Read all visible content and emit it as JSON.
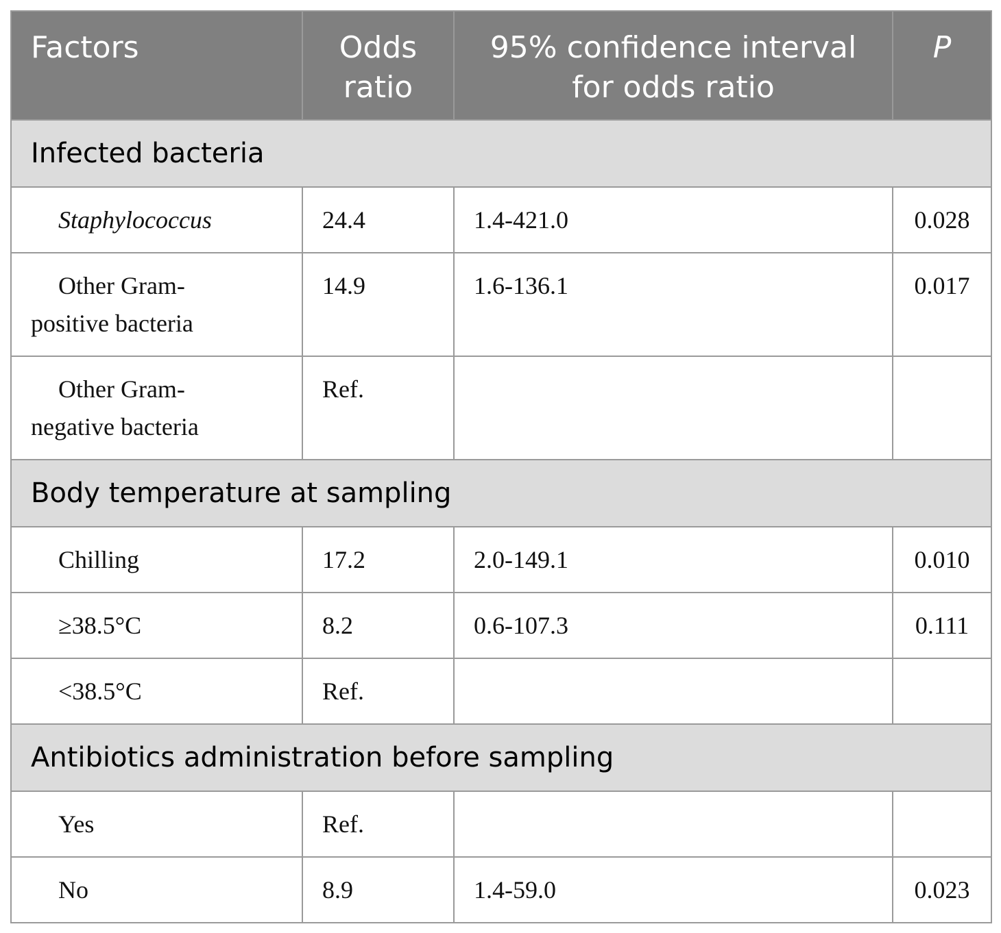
{
  "table": {
    "header": {
      "factors": "Factors",
      "odds_ratio": "Odds ratio",
      "ci": "95% confidence interval for odds ratio",
      "p": "P"
    },
    "sections": [
      {
        "title": "Infected bacteria",
        "rows": [
          {
            "factor": "Staphylococcus",
            "odds_ratio": "24.4",
            "ci": "1.4-421.0",
            "p": "0.028"
          },
          {
            "factor": "Other Gram-positive bacteria",
            "odds_ratio": "14.9",
            "ci": "1.6-136.1",
            "p": "0.017"
          },
          {
            "factor": "Other Gram-negative bacteria",
            "odds_ratio": "Ref."
          }
        ]
      },
      {
        "title": "Body temperature at sampling",
        "rows": [
          {
            "factor": "Chilling",
            "odds_ratio": "17.2",
            "ci": "2.0-149.1",
            "p": "0.010"
          },
          {
            "factor": "≥38.5°C",
            "odds_ratio": "8.2",
            "ci": "0.6-107.3",
            "p": "0.111"
          },
          {
            "factor": "<38.5°C",
            "odds_ratio": "Ref."
          }
        ]
      },
      {
        "title": "Antibiotics administration before sampling",
        "rows": [
          {
            "factor": "Yes",
            "odds_ratio": "Ref."
          },
          {
            "factor": "No",
            "odds_ratio": "8.9",
            "ci": "1.4-59.0",
            "p": "0.023"
          }
        ]
      }
    ]
  }
}
